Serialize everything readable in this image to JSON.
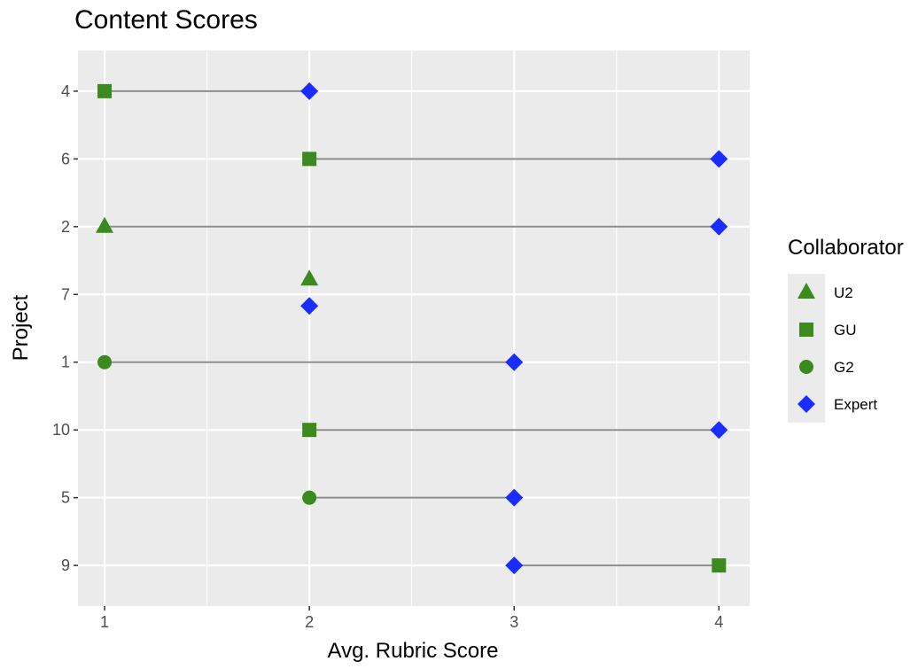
{
  "chart_data": {
    "type": "dot",
    "title": "Content Scores",
    "xlabel": "Avg. Rubric Score",
    "ylabel": "Project",
    "xlim": [
      0.87,
      4.15
    ],
    "x_ticks": [
      1,
      2,
      3,
      4
    ],
    "categories": [
      "4",
      "6",
      "2",
      "7",
      "1",
      "10",
      "5",
      "9"
    ],
    "grid": true,
    "legend": {
      "title": "Collaborator",
      "position": "right"
    },
    "series": [
      {
        "name": "U2",
        "shape": "triangle",
        "color": "#3a8a1d",
        "points": [
          {
            "project": "2",
            "score": 1
          },
          {
            "project": "7",
            "score": 2
          }
        ]
      },
      {
        "name": "GU",
        "shape": "square",
        "color": "#3a8a1d",
        "points": [
          {
            "project": "4",
            "score": 1
          },
          {
            "project": "6",
            "score": 2
          },
          {
            "project": "10",
            "score": 2
          },
          {
            "project": "9",
            "score": 4
          }
        ]
      },
      {
        "name": "G2",
        "shape": "circle",
        "color": "#3a8a1d",
        "points": [
          {
            "project": "1",
            "score": 1
          },
          {
            "project": "5",
            "score": 2
          }
        ]
      },
      {
        "name": "Expert",
        "shape": "diamond",
        "color": "#1a2cff",
        "points": [
          {
            "project": "4",
            "score": 2
          },
          {
            "project": "6",
            "score": 4
          },
          {
            "project": "2",
            "score": 4
          },
          {
            "project": "7",
            "score": 2
          },
          {
            "project": "1",
            "score": 3
          },
          {
            "project": "10",
            "score": 4
          },
          {
            "project": "5",
            "score": 3
          },
          {
            "project": "9",
            "score": 3
          }
        ]
      }
    ],
    "connectors": [
      {
        "project": "4",
        "from": 1,
        "to": 2
      },
      {
        "project": "6",
        "from": 2,
        "to": 4
      },
      {
        "project": "2",
        "from": 1,
        "to": 4
      },
      {
        "project": "1",
        "from": 1,
        "to": 3
      },
      {
        "project": "10",
        "from": 2,
        "to": 4
      },
      {
        "project": "5",
        "from": 2,
        "to": 3
      },
      {
        "project": "9",
        "from": 3,
        "to": 4
      }
    ],
    "colors": {
      "panel_bg": "#ebebeb",
      "grid": "#ffffff",
      "connector": "#8c8c8c",
      "tick_text": "#4d4d4d"
    }
  }
}
